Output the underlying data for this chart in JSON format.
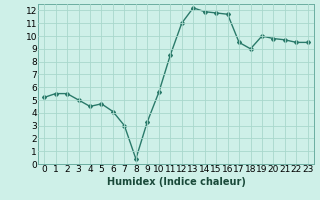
{
  "x": [
    0,
    1,
    2,
    3,
    4,
    5,
    6,
    7,
    8,
    9,
    10,
    11,
    12,
    13,
    14,
    15,
    16,
    17,
    18,
    19,
    20,
    21,
    22,
    23
  ],
  "y": [
    5.2,
    5.5,
    5.5,
    5.0,
    4.5,
    4.7,
    4.1,
    3.0,
    0.4,
    3.3,
    5.6,
    8.5,
    11.0,
    12.2,
    11.9,
    11.8,
    11.7,
    9.5,
    9.0,
    10.0,
    9.8,
    9.7,
    9.5,
    9.5
  ],
  "xlabel": "Humidex (Indice chaleur)",
  "bg_color": "#cef0e8",
  "grid_color": "#a8d8cc",
  "line_color": "#2a7a6a",
  "ylim": [
    0,
    12.5
  ],
  "xlim": [
    -0.5,
    23.5
  ],
  "yticks": [
    0,
    1,
    2,
    3,
    4,
    5,
    6,
    7,
    8,
    9,
    10,
    11,
    12
  ],
  "xticks": [
    0,
    1,
    2,
    3,
    4,
    5,
    6,
    7,
    8,
    9,
    10,
    11,
    12,
    13,
    14,
    15,
    16,
    17,
    18,
    19,
    20,
    21,
    22,
    23
  ],
  "xlabel_fontsize": 7,
  "tick_fontsize": 6.5
}
